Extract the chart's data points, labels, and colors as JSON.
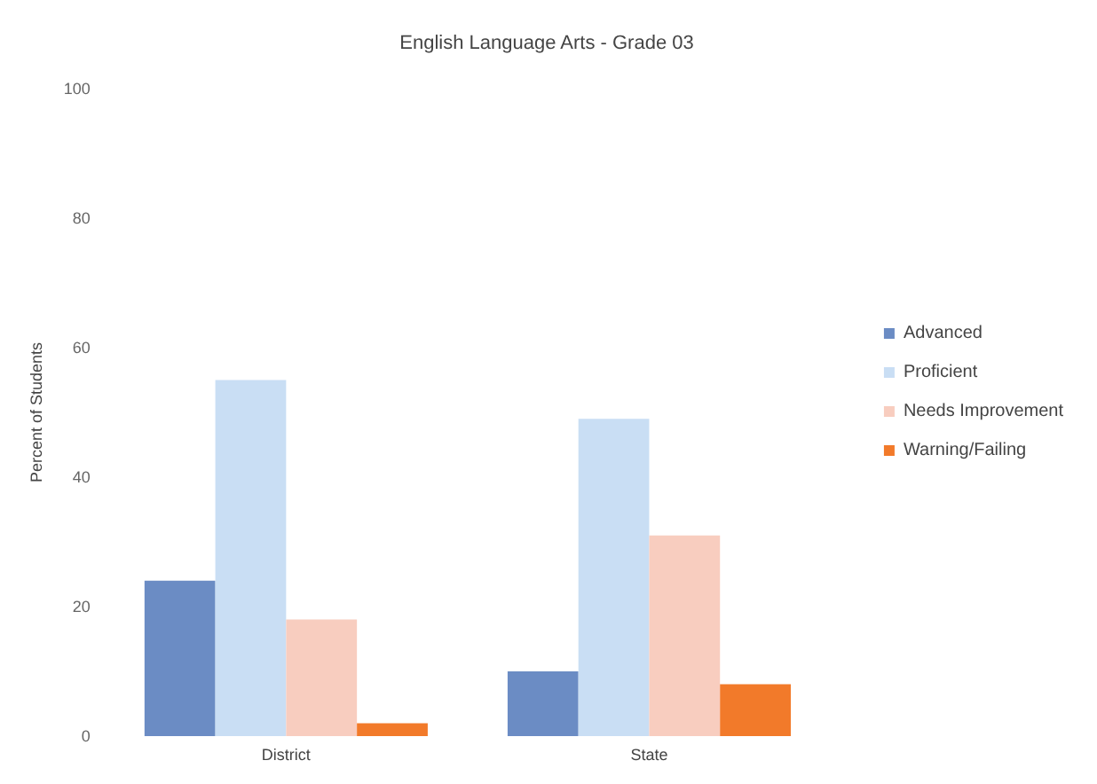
{
  "chart_data": {
    "type": "bar",
    "title": "English Language Arts - Grade 03",
    "ylabel": "Percent of Students",
    "categories": [
      "District",
      "State"
    ],
    "series": [
      {
        "name": "Advanced",
        "color": "#6b8cc4",
        "values": [
          24,
          10
        ]
      },
      {
        "name": "Proficient",
        "color": "#c9def4",
        "values": [
          55,
          49
        ]
      },
      {
        "name": "Needs Improvement",
        "color": "#f8cdbf",
        "values": [
          18,
          31
        ]
      },
      {
        "name": "Warning/Failing",
        "color": "#f27a2a",
        "values": [
          2,
          8
        ]
      }
    ],
    "ylim": [
      0,
      100
    ],
    "yticks": [
      0,
      20,
      40,
      60,
      80,
      100
    ],
    "grid": false,
    "legend": "right"
  }
}
